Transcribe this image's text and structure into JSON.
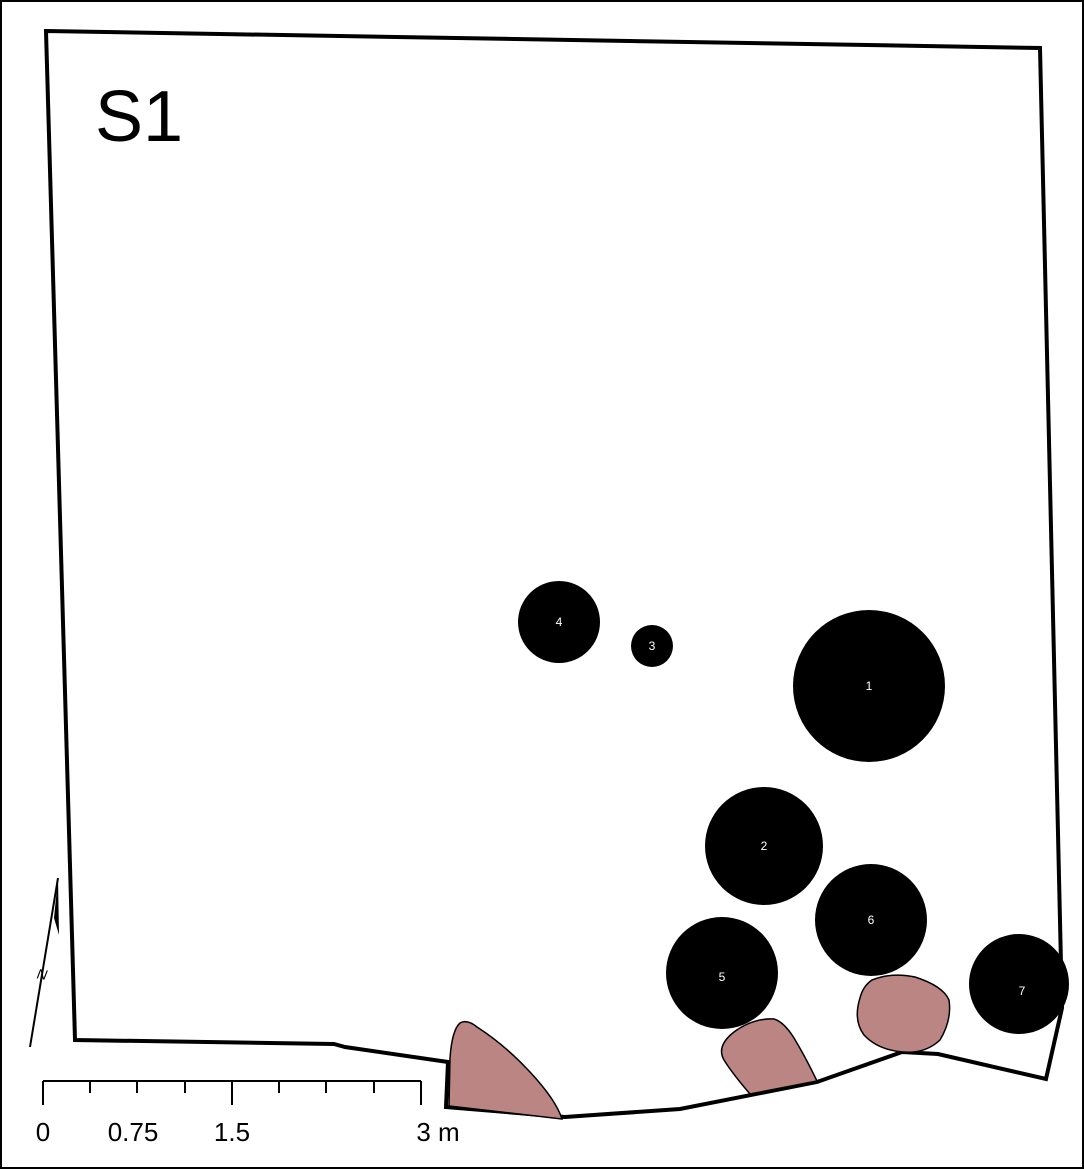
{
  "map": {
    "title": "S1",
    "colors": {
      "outline": "#000000",
      "feature_fill": "#000000",
      "feature_label": "#ffffff",
      "stone_fill": "#bb8583",
      "background": "#ffffff"
    }
  },
  "features": [
    {
      "id": "1",
      "label": "1"
    },
    {
      "id": "2",
      "label": "2"
    },
    {
      "id": "3",
      "label": "3"
    },
    {
      "id": "4",
      "label": "4"
    },
    {
      "id": "5",
      "label": "5"
    },
    {
      "id": "6",
      "label": "6"
    },
    {
      "id": "7",
      "label": "7"
    }
  ],
  "scale_bar": {
    "labels": [
      "0",
      "0.75",
      "1.5",
      "3 m"
    ],
    "unit": "m"
  },
  "north_arrow": {
    "label": "N",
    "icon": "north-arrow-icon"
  }
}
